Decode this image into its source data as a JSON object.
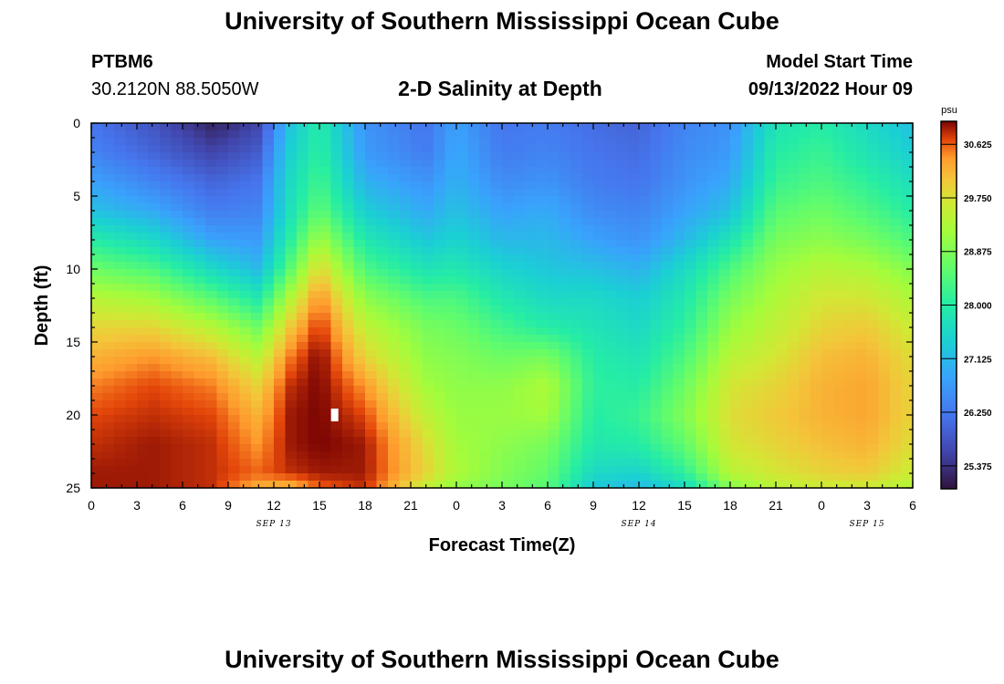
{
  "header": {
    "title": "University of Southern Mississippi Ocean Cube",
    "station": "PTBM6",
    "coordinates": "30.2120N  88.5050W",
    "subtitle": "2-D Salinity at Depth",
    "model_start_label": "Model Start Time",
    "model_start_value": "09/13/2022 Hour 09"
  },
  "footer": {
    "title": "University of Southern Mississippi Ocean Cube"
  },
  "chart_data": {
    "type": "heatmap",
    "title": "2-D Salinity at Depth",
    "xlabel": "Forecast Time(Z)",
    "ylabel": "Depth (ft)",
    "x_tick_labels": [
      "0",
      "3",
      "6",
      "9",
      "12",
      "15",
      "18",
      "21",
      "0",
      "3",
      "6",
      "9",
      "12",
      "15",
      "18",
      "21",
      "0",
      "3",
      "6"
    ],
    "x_range_hours": [
      0,
      54
    ],
    "date_labels": [
      {
        "text": "SEP 13",
        "hour": 12
      },
      {
        "text": "SEP 14",
        "hour": 36
      },
      {
        "text": "SEP 15",
        "hour": 51
      }
    ],
    "y_tick_labels": [
      "0",
      "5",
      "10",
      "15",
      "20",
      "25"
    ],
    "y_range_ft": [
      0,
      25
    ],
    "colorbar": {
      "unit": "psu",
      "min": 25.0,
      "max": 31.0,
      "tick_labels": [
        "30.625",
        "29.750",
        "28.875",
        "28.000",
        "27.125",
        "26.250",
        "25.375"
      ],
      "tick_values": [
        30.625,
        29.75,
        28.875,
        28.0,
        27.125,
        26.25,
        25.375
      ]
    },
    "salinity_profiles": [
      {
        "hour": 0,
        "psu": [
          26.2,
          26.4,
          26.8,
          27.2,
          28.0,
          28.7,
          29.4,
          29.9,
          30.2,
          30.5,
          30.7,
          30.8,
          30.9,
          30.9
        ]
      },
      {
        "hour": 4,
        "psu": [
          25.8,
          26.0,
          26.4,
          26.9,
          27.6,
          28.4,
          29.2,
          29.9,
          30.4,
          30.7,
          30.8,
          30.9,
          30.9,
          30.9
        ]
      },
      {
        "hour": 8,
        "psu": [
          25.2,
          25.6,
          26.0,
          26.3,
          26.8,
          27.6,
          28.5,
          29.4,
          30.1,
          30.5,
          30.7,
          30.8,
          30.8,
          30.8
        ]
      },
      {
        "hour": 11,
        "psu": [
          25.6,
          25.9,
          26.2,
          26.4,
          26.7,
          27.1,
          27.9,
          28.7,
          29.4,
          29.9,
          30.2,
          30.4,
          30.6,
          30.2
        ]
      },
      {
        "hour": 13,
        "psu": [
          27.2,
          27.4,
          27.6,
          27.7,
          28.0,
          28.5,
          29.3,
          30.0,
          30.5,
          30.8,
          30.9,
          30.9,
          30.8,
          30.1
        ]
      },
      {
        "hour": 15,
        "psu": [
          28.0,
          28.1,
          28.3,
          28.6,
          29.2,
          29.9,
          30.5,
          30.8,
          31.0,
          31.0,
          31.0,
          31.0,
          30.9,
          30.6
        ]
      },
      {
        "hour": 18,
        "psu": [
          26.6,
          26.7,
          27.0,
          27.4,
          27.9,
          28.4,
          29.0,
          29.5,
          29.9,
          30.4,
          30.7,
          30.9,
          30.9,
          30.8
        ]
      },
      {
        "hour": 22,
        "psu": [
          26.2,
          26.3,
          26.6,
          26.9,
          27.3,
          27.8,
          28.4,
          28.8,
          29.0,
          29.2,
          29.5,
          29.8,
          29.9,
          29.5
        ]
      },
      {
        "hour": 24,
        "psu": [
          26.8,
          26.9,
          27.0,
          27.2,
          27.5,
          27.9,
          28.4,
          28.7,
          28.9,
          29.0,
          29.1,
          29.2,
          29.3,
          29.0
        ]
      },
      {
        "hour": 27,
        "psu": [
          26.2,
          26.3,
          26.5,
          26.8,
          27.1,
          27.5,
          27.9,
          28.3,
          28.7,
          29.0,
          29.1,
          29.0,
          28.9,
          28.8
        ]
      },
      {
        "hour": 30,
        "psu": [
          26.3,
          26.4,
          26.6,
          26.9,
          27.1,
          27.3,
          27.6,
          28.0,
          28.8,
          29.3,
          29.2,
          28.8,
          28.6,
          28.5
        ]
      },
      {
        "hour": 33,
        "psu": [
          26.1,
          26.2,
          26.3,
          26.5,
          26.8,
          27.2,
          27.6,
          27.8,
          28.0,
          28.1,
          28.0,
          27.9,
          27.6,
          27.3
        ]
      },
      {
        "hour": 36,
        "psu": [
          26.0,
          26.1,
          26.2,
          26.4,
          26.6,
          27.0,
          27.4,
          27.6,
          27.8,
          28.0,
          28.2,
          28.0,
          27.5,
          27.1
        ]
      },
      {
        "hour": 39,
        "psu": [
          26.4,
          26.5,
          26.6,
          26.8,
          27.1,
          27.6,
          27.9,
          28.1,
          28.4,
          28.7,
          28.9,
          28.6,
          28.1,
          27.6
        ]
      },
      {
        "hour": 42,
        "psu": [
          26.6,
          26.7,
          26.9,
          27.2,
          27.8,
          28.4,
          28.8,
          29.1,
          29.4,
          29.7,
          29.8,
          29.7,
          29.4,
          28.9
        ]
      },
      {
        "hour": 45,
        "psu": [
          27.8,
          28.0,
          28.2,
          28.5,
          28.8,
          29.1,
          29.3,
          29.5,
          29.7,
          29.9,
          30.0,
          29.9,
          29.7,
          29.4
        ]
      },
      {
        "hour": 48,
        "psu": [
          28.0,
          28.2,
          28.4,
          28.7,
          29.0,
          29.4,
          29.7,
          29.9,
          30.1,
          30.2,
          30.2,
          30.1,
          29.9,
          29.6
        ]
      },
      {
        "hour": 51,
        "psu": [
          27.6,
          27.8,
          28.1,
          28.4,
          28.8,
          29.3,
          29.7,
          30.0,
          30.2,
          30.3,
          30.3,
          30.2,
          30.0,
          29.6
        ]
      },
      {
        "hour": 54,
        "psu": [
          27.2,
          27.4,
          27.7,
          28.0,
          28.4,
          28.9,
          29.3,
          29.6,
          29.8,
          29.9,
          29.9,
          29.8,
          29.6,
          29.3
        ]
      }
    ],
    "profile_depths_ft": [
      0,
      2,
      4,
      6,
      8,
      10,
      12,
      14,
      16,
      18,
      20,
      22,
      24,
      25
    ],
    "annotations": [
      {
        "type": "marker",
        "hour": 16,
        "depth_ft": 20,
        "color": "#ffffff"
      }
    ]
  }
}
